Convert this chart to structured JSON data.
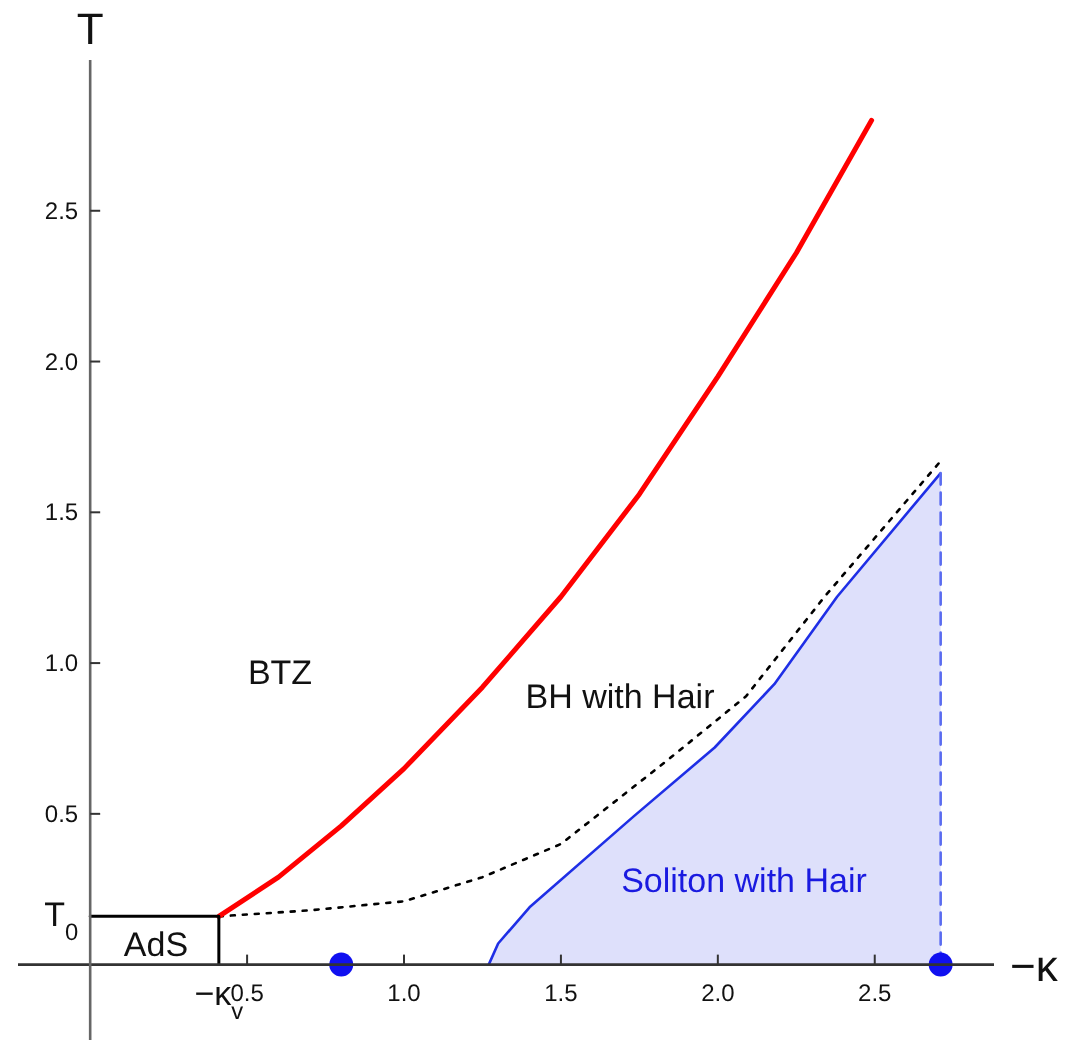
{
  "chart_data": {
    "type": "line",
    "xlabel": "−κ",
    "ylabel": "T",
    "xlim": [
      -0.23,
      2.88
    ],
    "ylim": [
      -0.25,
      3.0
    ],
    "xticks": [
      {
        "value": 0.41,
        "label": "−κ$_{v}$"
      },
      0.5,
      {
        "value": 1.0,
        "label": "1.0"
      },
      1.5,
      {
        "value": 2.0,
        "label": "2.0"
      },
      2.5
    ],
    "yticks": [
      {
        "value": 0.16,
        "label": "T$_{0}$"
      },
      0.5,
      {
        "value": 1.0,
        "label": "1.0"
      },
      1.5,
      {
        "value": 2.0,
        "label": "2.0"
      },
      2.5
    ],
    "series": [
      {
        "type": "area",
        "color": "#1f2fe6",
        "x": [
          1.27,
          1.3,
          1.4,
          1.73,
          1.99,
          2.18,
          2.38,
          2.71
        ],
        "values": [
          0,
          0.07,
          0.19,
          0.49,
          0.72,
          0.93,
          1.22,
          1.63
        ]
      },
      {
        "color": "#5a6cf0",
        "line_style": "dashed",
        "x": [
          2.71,
          2.71
        ],
        "values": [
          0,
          1.63
        ]
      },
      {
        "color": "#000000",
        "line_style": "dotted",
        "x": [
          0.41,
          0.7,
          1.0,
          1.25,
          1.5,
          1.83,
          2.09,
          2.34,
          2.71
        ],
        "values": [
          0.16,
          0.18,
          0.21,
          0.29,
          0.4,
          0.67,
          0.89,
          1.22,
          1.67
        ]
      },
      {
        "color": "#ff0000",
        "x": [
          0.41,
          0.6,
          0.8,
          1.0,
          1.25,
          1.5,
          1.75,
          2.0,
          2.25,
          2.49
        ],
        "values": [
          0.16,
          0.29,
          0.46,
          0.65,
          0.92,
          1.22,
          1.56,
          1.95,
          2.36,
          2.8
        ]
      },
      {
        "color": "#000000",
        "x": [
          0,
          0.41,
          0.41
        ],
        "values": [
          0.16,
          0.16,
          0
        ]
      },
      {
        "type": "scatter",
        "color": "#1010f0",
        "marker": "circle",
        "x": [
          0.8,
          2.71
        ],
        "values": [
          0,
          0
        ]
      }
    ],
    "annotations": [
      "BTZ",
      "BH with Hair",
      "Soliton with Hair",
      "AdS"
    ]
  }
}
